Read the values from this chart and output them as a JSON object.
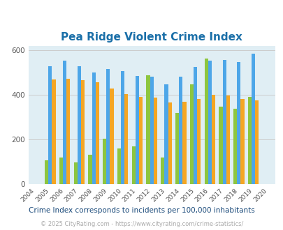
{
  "title": "Pea Ridge Violent Crime Index",
  "years": [
    2005,
    2006,
    2007,
    2008,
    2009,
    2010,
    2011,
    2012,
    2013,
    2014,
    2015,
    2016,
    2017,
    2018,
    2019
  ],
  "pea_ridge": [
    105,
    120,
    98,
    130,
    205,
    160,
    168,
    490,
    120,
    320,
    447,
    565,
    347,
    337,
    390
  ],
  "arkansas": [
    530,
    553,
    530,
    502,
    518,
    507,
    485,
    483,
    447,
    483,
    525,
    553,
    557,
    547,
    585
  ],
  "national": [
    470,
    472,
    467,
    458,
    430,
    405,
    390,
    388,
    365,
    370,
    383,
    400,
    399,
    382,
    377
  ],
  "color_pea_ridge": "#8dc63f",
  "color_arkansas": "#4da6e8",
  "color_national": "#f5a623",
  "ylim": [
    0,
    620
  ],
  "yticks": [
    0,
    200,
    400,
    600
  ],
  "bg_color": "#e0eef4",
  "title_color": "#1a6fa8",
  "subtitle": "Crime Index corresponds to incidents per 100,000 inhabitants",
  "footer": "© 2025 CityRating.com - https://www.cityrating.com/crime-statistics/",
  "subtitle_color": "#1a4a7a",
  "footer_color": "#aaaaaa"
}
